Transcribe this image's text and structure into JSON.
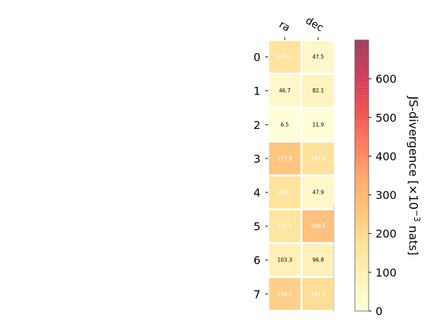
{
  "chart_data": {
    "type": "heatmap",
    "columns": [
      "ra",
      "dec"
    ],
    "rows": [
      "0",
      "1",
      "2",
      "3",
      "4",
      "5",
      "6",
      "7"
    ],
    "values": [
      [
        174.3,
        47.5
      ],
      [
        46.7,
        82.1
      ],
      [
        6.5,
        11.9
      ],
      [
        277.8,
        184.3
      ],
      [
        180.2,
        47.9
      ],
      [
        170.6,
        290.5
      ],
      [
        103.3,
        96.8
      ],
      [
        239.7,
        197.5
      ]
    ],
    "value_labels": [
      [
        "174.3",
        "47.5"
      ],
      [
        "46.7",
        "82.1"
      ],
      [
        "6.5",
        "11.9"
      ],
      [
        "277.8",
        "184.3"
      ],
      [
        "180.2",
        "47.9"
      ],
      [
        "170.6",
        "290.5"
      ],
      [
        "103.3",
        "96.8"
      ],
      [
        "239.7",
        "197.5"
      ]
    ],
    "colorbar": {
      "label_prefix": "JS-divergence [×10",
      "label_exp": "−3",
      "label_suffix": " nats]",
      "range": [
        0,
        700
      ],
      "ticks": [
        0,
        100,
        200,
        300,
        400,
        500,
        600
      ],
      "tick_labels": [
        "0",
        "100",
        "200",
        "300",
        "400",
        "500",
        "600"
      ],
      "colormap": "YlOrRd"
    },
    "grid": false
  }
}
